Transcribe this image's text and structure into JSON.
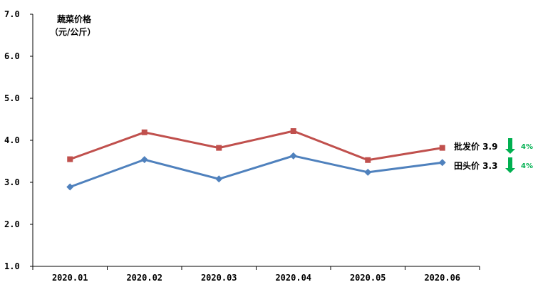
{
  "chart_data": {
    "type": "line",
    "ylabel_line1": "蔬菜价格",
    "ylabel_line2": "（元/公斤）",
    "ylim": [
      1.0,
      7.0
    ],
    "yticks": [
      "1.0",
      "2.0",
      "3.0",
      "4.0",
      "5.0",
      "6.0",
      "7.0"
    ],
    "categories": [
      "2020.01",
      "2020.02",
      "2020.03",
      "2020.04",
      "2020.05",
      "2020.06"
    ],
    "series": [
      {
        "name": "批发价",
        "values": [
          3.55,
          4.19,
          3.82,
          4.22,
          3.53,
          3.82
        ],
        "color": "#c0504d",
        "marker": "square"
      },
      {
        "name": "田头价",
        "values": [
          2.89,
          3.54,
          3.08,
          3.63,
          3.24,
          3.47
        ],
        "color": "#4f81bd",
        "marker": "diamond"
      }
    ],
    "annotations": [
      {
        "label": "批发价 3.9",
        "change": "4%",
        "direction": "down",
        "arrow_color": "#00b050"
      },
      {
        "label": "田头价 3.3",
        "change": "4%",
        "direction": "down",
        "arrow_color": "#00b050"
      }
    ],
    "grid": false,
    "legend": "none"
  }
}
